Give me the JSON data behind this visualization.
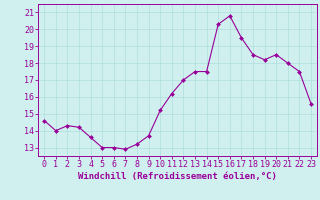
{
  "x": [
    0,
    1,
    2,
    3,
    4,
    5,
    6,
    7,
    8,
    9,
    10,
    11,
    12,
    13,
    14,
    15,
    16,
    17,
    18,
    19,
    20,
    21,
    22,
    23
  ],
  "y": [
    14.6,
    14.0,
    14.3,
    14.2,
    13.6,
    13.0,
    13.0,
    12.9,
    13.2,
    13.7,
    15.2,
    16.2,
    17.0,
    17.5,
    17.5,
    20.3,
    20.8,
    19.5,
    18.5,
    18.2,
    18.5,
    18.0,
    17.5,
    15.6
  ],
  "hours": [
    0,
    1,
    2,
    3,
    4,
    5,
    6,
    7,
    8,
    9,
    10,
    11,
    12,
    13,
    14,
    15,
    16,
    17,
    18,
    19,
    20,
    21,
    22,
    23
  ],
  "xlim": [
    -0.5,
    23.5
  ],
  "ylim": [
    12.5,
    21.5
  ],
  "yticks": [
    13,
    14,
    15,
    16,
    17,
    18,
    19,
    20,
    21
  ],
  "line_color": "#990099",
  "marker": "D",
  "marker_size": 2.0,
  "bg_color": "#d0f0f0",
  "grid_color": "#b0dede",
  "xlabel": "Windchill (Refroidissement éolien,°C)",
  "xlabel_fontsize": 6.5,
  "tick_fontsize": 6.0,
  "linewidth": 0.8
}
